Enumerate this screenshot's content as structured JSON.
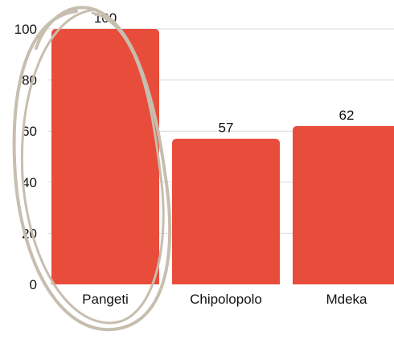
{
  "chart_data": {
    "type": "bar",
    "categories": [
      "Pangeti",
      "Chipolopolo",
      "Mdeka"
    ],
    "values": [
      100,
      57,
      62
    ],
    "title": "",
    "xlabel": "",
    "ylabel": "",
    "ylim": [
      0,
      100
    ],
    "yticks": [
      0,
      20,
      40,
      60,
      80,
      100
    ],
    "grid": true,
    "data_labels": [
      "100",
      "57",
      "62"
    ],
    "colors": {
      "bar": "#e84c3a",
      "grid": "#d9d9d9",
      "annotation_circle": "#c7beaf"
    },
    "annotation": "hand-drawn circle around the Pangeti bar"
  }
}
